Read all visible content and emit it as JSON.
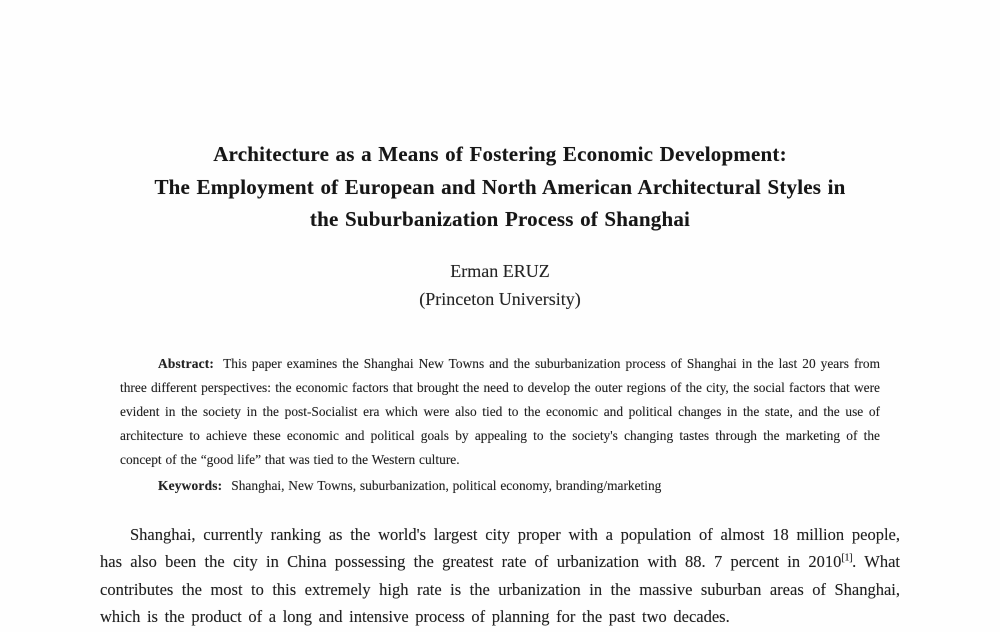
{
  "document": {
    "title_lines": [
      "Architecture as a Means of Fostering Economic Development:",
      "The Employment of European and North American Architectural Styles in",
      "the Suburbanization Process of Shanghai"
    ],
    "author": "Erman ERUZ",
    "affiliation": "(Princeton University)",
    "abstract_label": "Abstract:",
    "abstract_text": "This paper examines the Shanghai New Towns and the suburbanization process of Shanghai in the last 20 years from three different perspectives: the economic factors that brought the need to develop the outer regions of the city, the social factors that were evident in the society in the post-Socialist era which were also tied to the economic and political changes in the state, and the use of architecture to achieve these economic and political goals by appealing to the society's changing tastes through the marketing of the concept of the “good life” that was tied to the Western culture.",
    "keywords_label": "Keywords:",
    "keywords_text": "Shanghai, New Towns, suburbanization, political economy, branding/marketing",
    "paragraph": {
      "text_before_citation": "Shanghai, currently ranking as the world's largest city proper with a population of almost 18 million people, has also been the city in China possessing the greatest rate of urbanization with 88. 7 percent in 2010",
      "citation": "[1]",
      "text_after_citation": ". What contributes the most to this extremely high rate is the urbanization in the massive suburban areas of Shanghai, which is the product of a long and intensive process of planning for the past two decades."
    }
  }
}
